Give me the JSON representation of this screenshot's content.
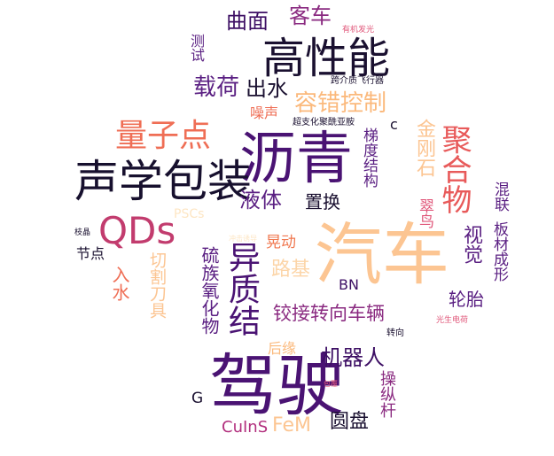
{
  "words": [
    {
      "text": "沥青",
      "color": "#4a1373"
    },
    {
      "text": "汽车",
      "color": "#fcc592"
    },
    {
      "text": "驾驶",
      "color": "#4a1373"
    },
    {
      "text": "声学包装",
      "color": "#17102e"
    },
    {
      "text": "高性能",
      "color": "#1a1030"
    },
    {
      "text": "QDs",
      "color": "#c23c6e"
    },
    {
      "text": "异质结",
      "color": "#4a1373"
    },
    {
      "text": "量子点",
      "color": "#ef6e55"
    },
    {
      "text": "聚合物",
      "color": "#e85a5a"
    },
    {
      "text": "容错控制",
      "color": "#fbb97c"
    },
    {
      "text": "载荷",
      "color": "#5a1f82"
    },
    {
      "text": "出水",
      "color": "#1a1030"
    },
    {
      "text": "曲面",
      "color": "#3d0f64"
    },
    {
      "text": "客车",
      "color": "#8a2a80"
    },
    {
      "text": "测试",
      "color": "#5a1f82"
    },
    {
      "text": "有机发光",
      "color": "#e0577a"
    },
    {
      "text": "跨介质飞行器",
      "color": "#1a1030"
    },
    {
      "text": "噪声",
      "color": "#ef6e55"
    },
    {
      "text": "超支化聚酰亚胺",
      "color": "#1a1030"
    },
    {
      "text": "c",
      "color": "#1a1030"
    },
    {
      "text": "金刚石",
      "color": "#fcc592"
    },
    {
      "text": "梯度结构",
      "color": "#5a1f82"
    },
    {
      "text": "液体",
      "color": "#5a1f82"
    },
    {
      "text": "置换",
      "color": "#1a1030"
    },
    {
      "text": "翠鸟",
      "color": "#e0577a"
    },
    {
      "text": "视觉",
      "color": "#5a1f82"
    },
    {
      "text": "混联",
      "color": "#5a1f82"
    },
    {
      "text": "板材成形",
      "color": "#5a1f82"
    },
    {
      "text": "PSCs",
      "color": "#fde6c4"
    },
    {
      "text": "枝晶",
      "color": "#1a1030"
    },
    {
      "text": "冲击诱导",
      "color": "#fde6c4"
    },
    {
      "text": "晃动",
      "color": "#f07850"
    },
    {
      "text": "节点",
      "color": "#1a1030"
    },
    {
      "text": "硫族氧化物",
      "color": "#5a1f82"
    },
    {
      "text": "路基",
      "color": "#fcd5a8"
    },
    {
      "text": "入水",
      "color": "#ef6e55"
    },
    {
      "text": "切割刀具",
      "color": "#fcc592"
    },
    {
      "text": "BN",
      "color": "#3d0f64"
    },
    {
      "text": "轮胎",
      "color": "#5a1f82"
    },
    {
      "text": "铰接转向车辆",
      "color": "#8a2a80"
    },
    {
      "text": "光生电荷",
      "color": "#e0577a"
    },
    {
      "text": "转向",
      "color": "#1a1030"
    },
    {
      "text": "后缘",
      "color": "#fbb97c"
    },
    {
      "text": "机器人",
      "color": "#3d0f64"
    },
    {
      "text": "包覆",
      "color": "#e0577a"
    },
    {
      "text": "操纵杆",
      "color": "#8a2a80"
    },
    {
      "text": "G",
      "color": "#1a1030"
    },
    {
      "text": "CuInS",
      "color": "#b2307e"
    },
    {
      "text": "FeM",
      "color": "#fcc592"
    },
    {
      "text": "圆盘",
      "color": "#1a1030"
    }
  ]
}
